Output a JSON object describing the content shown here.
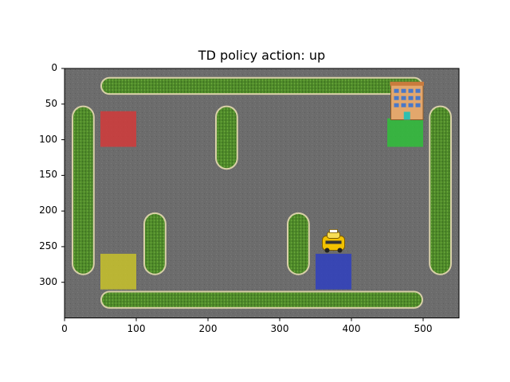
{
  "title": "TD policy action: up",
  "axes": {
    "x_ticks": [
      "0",
      "100",
      "200",
      "300",
      "400",
      "500"
    ],
    "y_ticks": [
      "0",
      "50",
      "100",
      "150",
      "200",
      "250",
      "300"
    ],
    "xlim": [
      0,
      550
    ],
    "ylim": [
      350,
      0
    ],
    "grid": false
  },
  "environment": {
    "name": "Taxi",
    "taxi": {
      "x": 375,
      "y": 245,
      "color": "#f2c200"
    },
    "pickup_dropoff_locations": [
      {
        "name": "red",
        "x": 50,
        "y": 60,
        "w": 50,
        "h": 50,
        "color": "#d23a3a"
      },
      {
        "name": "green",
        "x": 450,
        "y": 70,
        "w": 50,
        "h": 40,
        "color": "#2fbf3a"
      },
      {
        "name": "yellow",
        "x": 50,
        "y": 260,
        "w": 50,
        "h": 50,
        "color": "#c8c22a"
      },
      {
        "name": "blue",
        "x": 350,
        "y": 260,
        "w": 50,
        "h": 50,
        "color": "#2f3fbf"
      }
    ],
    "destination_building": {
      "x": 455,
      "y": 22,
      "w": 45,
      "h": 50
    },
    "hedges": [
      {
        "x": 50,
        "y": 12,
        "w": 450,
        "h": 25
      },
      {
        "x": 50,
        "y": 312,
        "w": 450,
        "h": 25
      },
      {
        "x": 10,
        "y": 52,
        "w": 32,
        "h": 238
      },
      {
        "x": 508,
        "y": 52,
        "w": 32,
        "h": 238
      },
      {
        "x": 210,
        "y": 52,
        "w": 32,
        "h": 90
      },
      {
        "x": 110,
        "y": 202,
        "w": 32,
        "h": 88
      },
      {
        "x": 310,
        "y": 202,
        "w": 32,
        "h": 88
      }
    ]
  }
}
